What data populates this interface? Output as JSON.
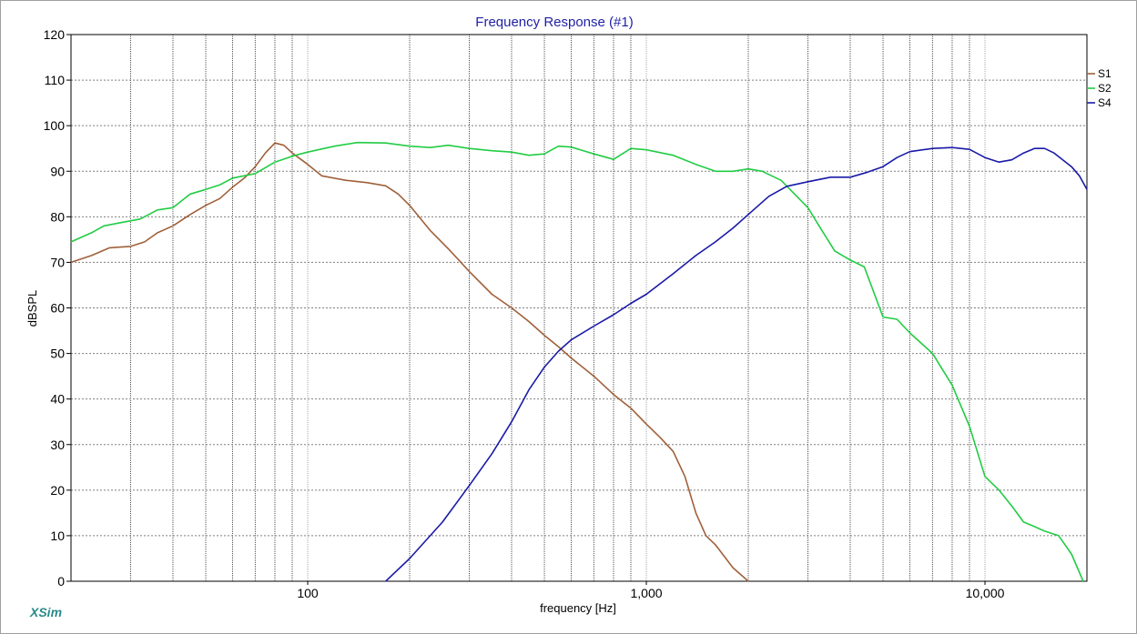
{
  "app": {
    "brand": "XSim"
  },
  "chart_data": {
    "type": "line",
    "title": "Frequency Response (#1)",
    "xlabel": "frequency [Hz]",
    "ylabel": "dBSPL",
    "x_scale": "log",
    "xlim": [
      20,
      20000
    ],
    "ylim": [
      0,
      120
    ],
    "x_ticks": [
      {
        "value": 100,
        "label": "100"
      },
      {
        "value": 1000,
        "label": "1,000"
      },
      {
        "value": 10000,
        "label": "10,000"
      }
    ],
    "y_ticks": [
      0,
      10,
      20,
      30,
      40,
      50,
      60,
      70,
      80,
      90,
      100,
      110,
      120
    ],
    "grid": true,
    "legend": "top-right",
    "series": [
      {
        "name": "S1",
        "color": "#a0603a",
        "points": [
          [
            20,
            70
          ],
          [
            23,
            71.5
          ],
          [
            26,
            73.2
          ],
          [
            30,
            73.5
          ],
          [
            33,
            74.5
          ],
          [
            36,
            76.5
          ],
          [
            40,
            78
          ],
          [
            45,
            80.5
          ],
          [
            50,
            82.5
          ],
          [
            55,
            84
          ],
          [
            60,
            86.5
          ],
          [
            65,
            88.5
          ],
          [
            70,
            91
          ],
          [
            75,
            94
          ],
          [
            80,
            96.2
          ],
          [
            85,
            95.7
          ],
          [
            90,
            94
          ],
          [
            100,
            91.5
          ],
          [
            110,
            89
          ],
          [
            130,
            88
          ],
          [
            150,
            87.5
          ],
          [
            170,
            86.8
          ],
          [
            185,
            85
          ],
          [
            200,
            82.5
          ],
          [
            230,
            77
          ],
          [
            260,
            73
          ],
          [
            300,
            68
          ],
          [
            350,
            63
          ],
          [
            400,
            60
          ],
          [
            450,
            57
          ],
          [
            500,
            54
          ],
          [
            550,
            51.5
          ],
          [
            600,
            49
          ],
          [
            700,
            45
          ],
          [
            800,
            41
          ],
          [
            900,
            38
          ],
          [
            1000,
            34.5
          ],
          [
            1100,
            31.5
          ],
          [
            1200,
            28.5
          ],
          [
            1300,
            23
          ],
          [
            1400,
            15
          ],
          [
            1500,
            10
          ],
          [
            1600,
            8
          ],
          [
            1800,
            3
          ],
          [
            2000,
            0
          ]
        ]
      },
      {
        "name": "S2",
        "color": "#22cc44",
        "points": [
          [
            20,
            74.5
          ],
          [
            23,
            76.5
          ],
          [
            25,
            78
          ],
          [
            28,
            78.7
          ],
          [
            32,
            79.5
          ],
          [
            36,
            81.5
          ],
          [
            40,
            82
          ],
          [
            45,
            85
          ],
          [
            50,
            86
          ],
          [
            55,
            87
          ],
          [
            60,
            88.5
          ],
          [
            70,
            89.5
          ],
          [
            80,
            92
          ],
          [
            90,
            93.3
          ],
          [
            100,
            94.2
          ],
          [
            120,
            95.5
          ],
          [
            140,
            96.3
          ],
          [
            170,
            96.2
          ],
          [
            200,
            95.5
          ],
          [
            230,
            95.2
          ],
          [
            260,
            95.7
          ],
          [
            300,
            95
          ],
          [
            350,
            94.5
          ],
          [
            400,
            94.2
          ],
          [
            450,
            93.5
          ],
          [
            500,
            93.8
          ],
          [
            550,
            95.5
          ],
          [
            600,
            95.3
          ],
          [
            700,
            93.8
          ],
          [
            800,
            92.6
          ],
          [
            900,
            95
          ],
          [
            1000,
            94.7
          ],
          [
            1200,
            93.5
          ],
          [
            1400,
            91.5
          ],
          [
            1600,
            90
          ],
          [
            1800,
            90
          ],
          [
            2000,
            90.5
          ],
          [
            2200,
            90
          ],
          [
            2500,
            88
          ],
          [
            3000,
            82
          ],
          [
            3300,
            77
          ],
          [
            3600,
            72.5
          ],
          [
            4000,
            70.5
          ],
          [
            4400,
            69
          ],
          [
            5000,
            58
          ],
          [
            5500,
            57.5
          ],
          [
            6000,
            54.5
          ],
          [
            7000,
            50
          ],
          [
            8000,
            43
          ],
          [
            9000,
            34
          ],
          [
            10000,
            23
          ],
          [
            11000,
            20
          ],
          [
            12000,
            16.5
          ],
          [
            13000,
            13
          ],
          [
            14000,
            12
          ],
          [
            15000,
            11
          ],
          [
            16500,
            10
          ],
          [
            18000,
            6
          ],
          [
            19500,
            0
          ]
        ]
      },
      {
        "name": "S4",
        "color": "#1a1aa8",
        "points": [
          [
            170,
            0
          ],
          [
            200,
            5
          ],
          [
            250,
            13
          ],
          [
            300,
            21
          ],
          [
            350,
            28
          ],
          [
            400,
            35
          ],
          [
            450,
            42
          ],
          [
            500,
            47
          ],
          [
            550,
            50.5
          ],
          [
            600,
            53
          ],
          [
            700,
            56
          ],
          [
            800,
            58.5
          ],
          [
            900,
            61
          ],
          [
            1000,
            63
          ],
          [
            1200,
            67.5
          ],
          [
            1400,
            71.5
          ],
          [
            1600,
            74.5
          ],
          [
            1800,
            77.5
          ],
          [
            2000,
            80.5
          ],
          [
            2300,
            84.5
          ],
          [
            2600,
            86.7
          ],
          [
            3000,
            87.7
          ],
          [
            3500,
            88.7
          ],
          [
            4000,
            88.7
          ],
          [
            4500,
            89.8
          ],
          [
            5000,
            91
          ],
          [
            5500,
            93
          ],
          [
            6000,
            94.3
          ],
          [
            7000,
            95
          ],
          [
            8000,
            95.2
          ],
          [
            9000,
            94.8
          ],
          [
            10000,
            93
          ],
          [
            11000,
            92
          ],
          [
            12000,
            92.5
          ],
          [
            13000,
            94
          ],
          [
            14000,
            95
          ],
          [
            15000,
            95
          ],
          [
            16000,
            94
          ],
          [
            18000,
            91
          ],
          [
            19000,
            89
          ],
          [
            20000,
            86
          ]
        ]
      }
    ]
  }
}
